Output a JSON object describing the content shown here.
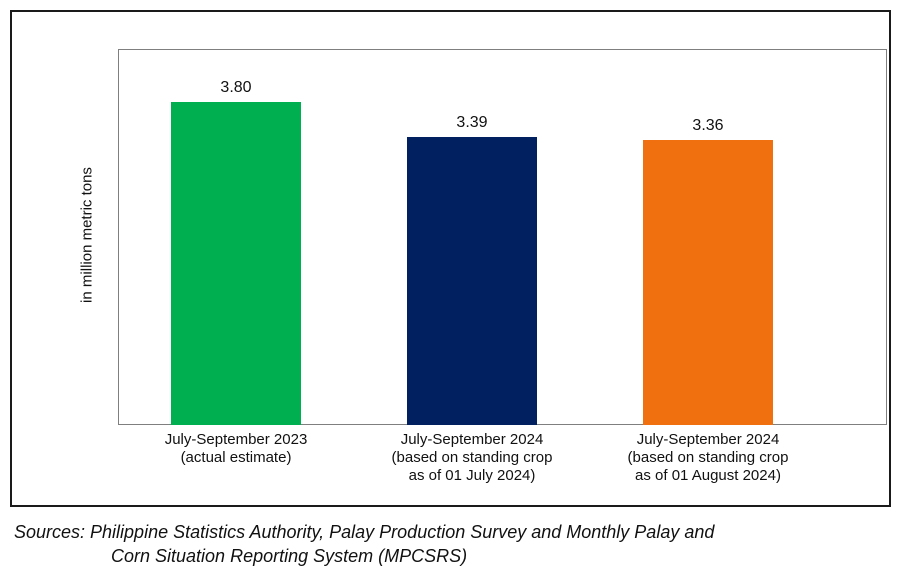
{
  "chart_data": {
    "type": "bar",
    "title": "",
    "ylabel": "in million metric tons",
    "xlabel": "",
    "ylim": [
      0,
      4.43
    ],
    "grid": false,
    "categories": [
      [
        "July-September 2023",
        "(actual estimate)"
      ],
      [
        "July-September 2024",
        "(based on standing crop",
        "as of 01 July 2024)"
      ],
      [
        "July-September 2024",
        "(based on standing crop",
        "as of 01 August 2024)"
      ]
    ],
    "values": [
      3.8,
      3.39,
      3.36
    ],
    "value_labels": [
      "3.80",
      "3.39",
      "3.36"
    ],
    "bar_colors": [
      "#00b050",
      "#002060",
      "#f07010"
    ]
  },
  "source": {
    "line1": "Sources: Philippine Statistics Authority, Palay Production Survey and Monthly Palay and",
    "line2": "Corn Situation Reporting System (MPCSRS)"
  }
}
